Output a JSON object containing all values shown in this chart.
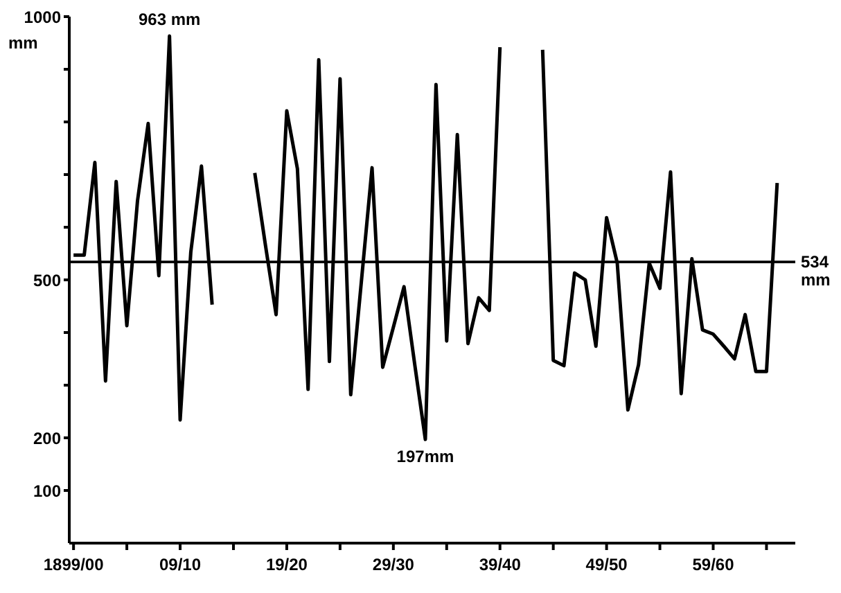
{
  "chart_data": {
    "type": "line",
    "ylabel": "mm",
    "categories": [
      "1899/00",
      null,
      null,
      null,
      null,
      null,
      null,
      null,
      null,
      null,
      "09/10",
      null,
      null,
      null,
      null,
      null,
      null,
      null,
      null,
      null,
      "19/20",
      null,
      null,
      null,
      null,
      null,
      null,
      null,
      null,
      null,
      "29/30",
      null,
      null,
      null,
      null,
      null,
      null,
      null,
      null,
      null,
      "39/40",
      null,
      null,
      null,
      null,
      null,
      null,
      null,
      null,
      null,
      "49/50",
      null,
      null,
      null,
      null,
      null,
      null,
      null,
      null,
      null,
      "59/60",
      null,
      null,
      null,
      null,
      null,
      null
    ],
    "series": [
      {
        "color": "#000000",
        "values": [
          547,
          547,
          723,
          308,
          687,
          413,
          650,
          797,
          508,
          963,
          234,
          553,
          716,
          453,
          null,
          null,
          null,
          703,
          566,
          434,
          821,
          711,
          292,
          918,
          345,
          882,
          282,
          497,
          713,
          334,
          410,
          487,
          340,
          197,
          871,
          384,
          776,
          379,
          466,
          442,
          942,
          null,
          null,
          null,
          937,
          347,
          337,
          513,
          500,
          374,
          618,
          532,
          253,
          339,
          532,
          484,
          705,
          284,
          540,
          405,
          397,
          374,
          350,
          434,
          326,
          326,
          684
        ]
      }
    ],
    "ylim": [
      0,
      1000
    ],
    "yticks": [
      100,
      200,
      {
        "value": 300,
        "label": null
      },
      {
        "value": 400,
        "label": null
      },
      500,
      {
        "value": 600,
        "label": null
      },
      {
        "value": 700,
        "label": null
      },
      {
        "value": 800,
        "label": null
      },
      {
        "value": 900,
        "label": null
      },
      1000
    ],
    "ref_lines": [
      {
        "axis": "y",
        "value": 534,
        "label": "534 mm"
      }
    ],
    "annotations": [
      {
        "text": "963 mm",
        "y": 963
      },
      {
        "text": "197mm",
        "y": 197
      }
    ],
    "grid": false,
    "legend": false,
    "marker": "none",
    "line_style": "solid"
  }
}
